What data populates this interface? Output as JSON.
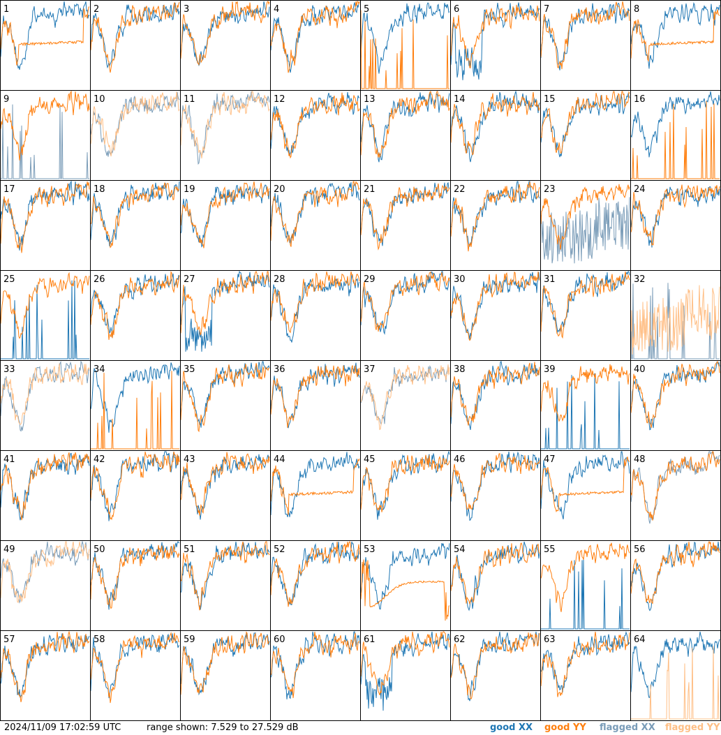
{
  "footer": {
    "timestamp": "2024/11/09 17:02:59 UTC",
    "range": "range shown: 7.529 to 27.529 dB"
  },
  "legend": {
    "good_xx": "good XX",
    "good_yy": "good YY",
    "flagged_xx": "flagged XX",
    "flagged_yy": "flagged YY"
  },
  "colors": {
    "good_xx": "#1f77b4",
    "good_yy": "#ff7f0e",
    "flagged_xx": "#7a9cb8",
    "flagged_yy": "#ffbf86"
  },
  "chart_data": {
    "type": "line",
    "layout": "8x8 small multiples",
    "y_range_db": [
      7.529,
      27.529
    ],
    "panels": [
      {
        "n": "1",
        "xx": "good",
        "yy": "good",
        "xx_shape": "normal",
        "yy_shape": "plateau"
      },
      {
        "n": "2",
        "xx": "good",
        "yy": "good",
        "xx_shape": "normal",
        "yy_shape": "normal"
      },
      {
        "n": "3",
        "xx": "good",
        "yy": "good",
        "xx_shape": "normal",
        "yy_shape": "normal"
      },
      {
        "n": "4",
        "xx": "good",
        "yy": "good",
        "xx_shape": "normal",
        "yy_shape": "normal"
      },
      {
        "n": "5",
        "xx": "good",
        "yy": "good",
        "xx_shape": "normal",
        "yy_shape": "spikes"
      },
      {
        "n": "6",
        "xx": "good",
        "yy": "good",
        "xx_shape": "dropout",
        "yy_shape": "normal"
      },
      {
        "n": "7",
        "xx": "good",
        "yy": "good",
        "xx_shape": "normal",
        "yy_shape": "normal"
      },
      {
        "n": "8",
        "xx": "good",
        "yy": "good",
        "xx_shape": "normal",
        "yy_shape": "plateau"
      },
      {
        "n": "9",
        "xx": "flagged",
        "yy": "good",
        "xx_shape": "spikes",
        "yy_shape": "normal"
      },
      {
        "n": "10",
        "xx": "flagged",
        "yy": "flagged",
        "xx_shape": "normal",
        "yy_shape": "normal"
      },
      {
        "n": "11",
        "xx": "flagged",
        "yy": "flagged",
        "xx_shape": "normal",
        "yy_shape": "normal"
      },
      {
        "n": "12",
        "xx": "good",
        "yy": "good",
        "xx_shape": "normal",
        "yy_shape": "normal"
      },
      {
        "n": "13",
        "xx": "good",
        "yy": "good",
        "xx_shape": "normal",
        "yy_shape": "normal"
      },
      {
        "n": "14",
        "xx": "good",
        "yy": "good",
        "xx_shape": "normal",
        "yy_shape": "normal"
      },
      {
        "n": "15",
        "xx": "good",
        "yy": "good",
        "xx_shape": "normal",
        "yy_shape": "normal"
      },
      {
        "n": "16",
        "xx": "good",
        "yy": "good",
        "xx_shape": "normal",
        "yy_shape": "spikes"
      },
      {
        "n": "17",
        "xx": "good",
        "yy": "good",
        "xx_shape": "normal",
        "yy_shape": "normal"
      },
      {
        "n": "18",
        "xx": "good",
        "yy": "good",
        "xx_shape": "normal",
        "yy_shape": "normal"
      },
      {
        "n": "19",
        "xx": "good",
        "yy": "good",
        "xx_shape": "normal",
        "yy_shape": "normal"
      },
      {
        "n": "20",
        "xx": "good",
        "yy": "good",
        "xx_shape": "normal",
        "yy_shape": "normal"
      },
      {
        "n": "21",
        "xx": "good",
        "yy": "good",
        "xx_shape": "normal",
        "yy_shape": "normal"
      },
      {
        "n": "22",
        "xx": "good",
        "yy": "good",
        "xx_shape": "normal",
        "yy_shape": "normal"
      },
      {
        "n": "23",
        "xx": "flagged",
        "yy": "good",
        "xx_shape": "noisy",
        "yy_shape": "normal"
      },
      {
        "n": "24",
        "xx": "good",
        "yy": "good",
        "xx_shape": "normal",
        "yy_shape": "normal"
      },
      {
        "n": "25",
        "xx": "good",
        "yy": "good",
        "xx_shape": "spikes",
        "yy_shape": "normal"
      },
      {
        "n": "26",
        "xx": "good",
        "yy": "good",
        "xx_shape": "normal",
        "yy_shape": "normal"
      },
      {
        "n": "27",
        "xx": "good",
        "yy": "good",
        "xx_shape": "dropout",
        "yy_shape": "normal"
      },
      {
        "n": "28",
        "xx": "good",
        "yy": "good",
        "xx_shape": "normal",
        "yy_shape": "normal"
      },
      {
        "n": "29",
        "xx": "good",
        "yy": "good",
        "xx_shape": "normal",
        "yy_shape": "normal"
      },
      {
        "n": "30",
        "xx": "good",
        "yy": "good",
        "xx_shape": "normal",
        "yy_shape": "normal"
      },
      {
        "n": "31",
        "xx": "good",
        "yy": "good",
        "xx_shape": "normal",
        "yy_shape": "normal"
      },
      {
        "n": "32",
        "xx": "flagged",
        "yy": "flagged",
        "xx_shape": "spikes",
        "yy_shape": "noisy"
      },
      {
        "n": "33",
        "xx": "flagged",
        "yy": "flagged",
        "xx_shape": "normal",
        "yy_shape": "normal"
      },
      {
        "n": "34",
        "xx": "good",
        "yy": "good",
        "xx_shape": "normal",
        "yy_shape": "spikes"
      },
      {
        "n": "35",
        "xx": "good",
        "yy": "good",
        "xx_shape": "normal",
        "yy_shape": "normal"
      },
      {
        "n": "36",
        "xx": "good",
        "yy": "good",
        "xx_shape": "normal",
        "yy_shape": "normal"
      },
      {
        "n": "37",
        "xx": "flagged",
        "yy": "flagged",
        "xx_shape": "normal",
        "yy_shape": "normal"
      },
      {
        "n": "38",
        "xx": "good",
        "yy": "good",
        "xx_shape": "normal",
        "yy_shape": "normal"
      },
      {
        "n": "39",
        "xx": "good",
        "yy": "good",
        "xx_shape": "spikes",
        "yy_shape": "normal"
      },
      {
        "n": "40",
        "xx": "good",
        "yy": "good",
        "xx_shape": "normal",
        "yy_shape": "normal"
      },
      {
        "n": "41",
        "xx": "good",
        "yy": "good",
        "xx_shape": "normal",
        "yy_shape": "normal"
      },
      {
        "n": "42",
        "xx": "good",
        "yy": "good",
        "xx_shape": "normal",
        "yy_shape": "normal"
      },
      {
        "n": "43",
        "xx": "good",
        "yy": "good",
        "xx_shape": "normal",
        "yy_shape": "normal"
      },
      {
        "n": "44",
        "xx": "good",
        "yy": "good",
        "xx_shape": "normal",
        "yy_shape": "plateau"
      },
      {
        "n": "45",
        "xx": "good",
        "yy": "good",
        "xx_shape": "normal",
        "yy_shape": "normal"
      },
      {
        "n": "46",
        "xx": "good",
        "yy": "good",
        "xx_shape": "normal",
        "yy_shape": "normal"
      },
      {
        "n": "47",
        "xx": "good",
        "yy": "good",
        "xx_shape": "normal",
        "yy_shape": "plateau"
      },
      {
        "n": "48",
        "xx": "flagged",
        "yy": "good",
        "xx_shape": "normal",
        "yy_shape": "normal"
      },
      {
        "n": "49",
        "xx": "flagged",
        "yy": "flagged",
        "xx_shape": "normal",
        "yy_shape": "normal"
      },
      {
        "n": "50",
        "xx": "good",
        "yy": "good",
        "xx_shape": "normal",
        "yy_shape": "normal"
      },
      {
        "n": "51",
        "xx": "good",
        "yy": "good",
        "xx_shape": "normal",
        "yy_shape": "normal"
      },
      {
        "n": "52",
        "xx": "good",
        "yy": "good",
        "xx_shape": "normal",
        "yy_shape": "normal"
      },
      {
        "n": "53",
        "xx": "good",
        "yy": "good",
        "xx_shape": "normal",
        "yy_shape": "bathtub"
      },
      {
        "n": "54",
        "xx": "good",
        "yy": "good",
        "xx_shape": "normal",
        "yy_shape": "normal"
      },
      {
        "n": "55",
        "xx": "good",
        "yy": "good",
        "xx_shape": "spikes",
        "yy_shape": "normal"
      },
      {
        "n": "56",
        "xx": "good",
        "yy": "good",
        "xx_shape": "normal",
        "yy_shape": "normal"
      },
      {
        "n": "57",
        "xx": "good",
        "yy": "good",
        "xx_shape": "normal",
        "yy_shape": "normal"
      },
      {
        "n": "58",
        "xx": "good",
        "yy": "good",
        "xx_shape": "normal",
        "yy_shape": "normal"
      },
      {
        "n": "59",
        "xx": "good",
        "yy": "good",
        "xx_shape": "normal",
        "yy_shape": "normal"
      },
      {
        "n": "60",
        "xx": "good",
        "yy": "good",
        "xx_shape": "normal",
        "yy_shape": "normal"
      },
      {
        "n": "61",
        "xx": "good",
        "yy": "good",
        "xx_shape": "dropout",
        "yy_shape": "normal"
      },
      {
        "n": "62",
        "xx": "good",
        "yy": "good",
        "xx_shape": "normal",
        "yy_shape": "normal"
      },
      {
        "n": "63",
        "xx": "good",
        "yy": "good",
        "xx_shape": "normal",
        "yy_shape": "normal"
      },
      {
        "n": "64",
        "xx": "good",
        "yy": "flagged",
        "xx_shape": "normal",
        "yy_shape": "spikes"
      }
    ]
  }
}
